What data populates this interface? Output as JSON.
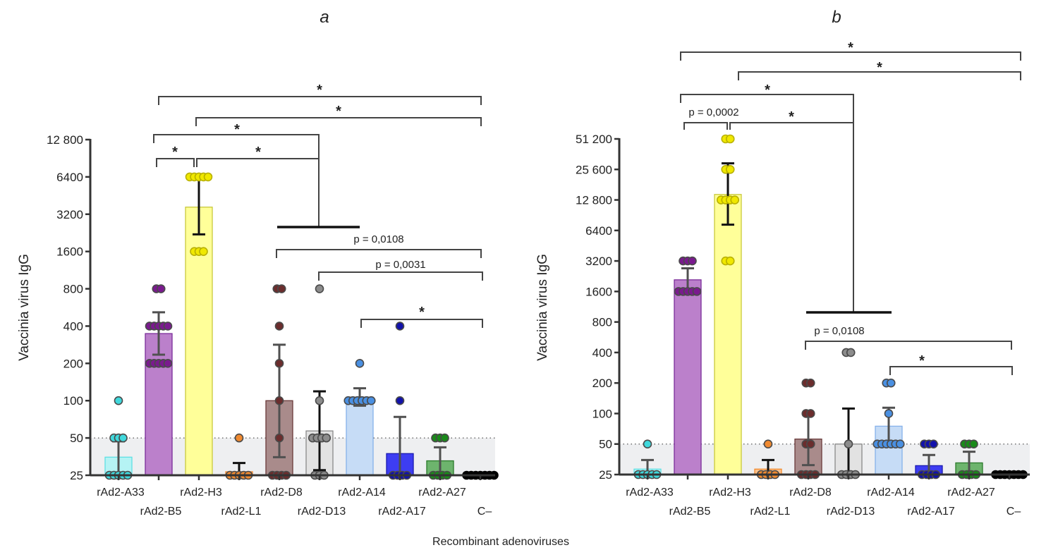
{
  "chart_data": [
    {
      "type": "bar",
      "panel_label": "a",
      "ylabel": "Vaccinia virus IgG",
      "yscale": "log2",
      "ylim": [
        25,
        12800
      ],
      "yticks": [
        25,
        50,
        100,
        200,
        400,
        800,
        1600,
        3200,
        6400,
        12800
      ],
      "ytick_labels": [
        "25",
        "50",
        "100",
        "200",
        "400",
        "800",
        "1600",
        "3200",
        "6400",
        "12 800"
      ],
      "threshold": 50,
      "categories": [
        "rAd2-A33",
        "rAd2-B5",
        "rAd2-H3",
        "rAd2-L1",
        "rAd2-D8",
        "rAd2-D13",
        "rAd2-A14",
        "rAd2-A17",
        "rAd2-A27",
        "C–"
      ],
      "values": [
        35,
        348,
        3650,
        26.7,
        100,
        57,
        107,
        37.4,
        32.7,
        25
      ],
      "error_low": [
        25,
        235,
        2200,
        25,
        35,
        27.5,
        91,
        25,
        25,
        25
      ],
      "error_high": [
        47,
        517,
        6220,
        31.4,
        283,
        119,
        126,
        74,
        42,
        25
      ],
      "points": [
        [
          25,
          25,
          25,
          25,
          25,
          50,
          50,
          50,
          100
        ],
        [
          200,
          200,
          200,
          200,
          200,
          400,
          400,
          400,
          400,
          400,
          800,
          800
        ],
        [
          1600,
          1600,
          1600,
          6400,
          6400,
          6400,
          6400,
          6400
        ],
        [
          25,
          25,
          25,
          25,
          25,
          50
        ],
        [
          25,
          25,
          25,
          25,
          50,
          100,
          200,
          400,
          800,
          800
        ],
        [
          25,
          25,
          25,
          50,
          50,
          50,
          50,
          100,
          800
        ],
        [
          100,
          100,
          100,
          100,
          100,
          100,
          200
        ],
        [
          25,
          25,
          25,
          25,
          100,
          400
        ],
        [
          25,
          25,
          25,
          25,
          50,
          50,
          50
        ],
        [
          25,
          25,
          25,
          25,
          25,
          25,
          25
        ]
      ],
      "annotations": [
        {
          "from": "rAd2-B5",
          "to": "C–",
          "text": "*"
        },
        {
          "from": "rAd2-H3",
          "to": "C–",
          "text": "*"
        },
        {
          "from": "rAd2-B5",
          "to": "rAd2-D8…rAd2-A14",
          "text": "*"
        },
        {
          "from": "rAd2-B5",
          "to": "rAd2-H3",
          "text": "*"
        },
        {
          "from": "rAd2-H3",
          "to": "rAd2-D8…rAd2-A14",
          "text": "*"
        },
        {
          "from": "rAd2-D8",
          "to": "C–",
          "text": "p = 0,0108"
        },
        {
          "from": "rAd2-D13",
          "to": "C–",
          "text": "p = 0,0031"
        },
        {
          "from": "rAd2-A14",
          "to": "C–",
          "text": "*"
        }
      ]
    },
    {
      "type": "bar",
      "panel_label": "b",
      "ylabel": "Vaccinia virus IgG",
      "yscale": "log2",
      "ylim": [
        25,
        51200
      ],
      "yticks": [
        25,
        50,
        100,
        200,
        400,
        800,
        1600,
        3200,
        6400,
        12800,
        25600,
        51200
      ],
      "ytick_labels": [
        "25",
        "50",
        "100",
        "200",
        "400",
        "800",
        "1600",
        "3200",
        "6400",
        "12 800",
        "25 600",
        "51 200"
      ],
      "threshold": 50,
      "categories": [
        "rAd2-A33",
        "rAd2-B5",
        "rAd2-H3",
        "rAd2-L1",
        "rAd2-D8",
        "rAd2-D13",
        "rAd2-A14",
        "rAd2-A17",
        "rAd2-A27",
        "C–"
      ],
      "values": [
        28.3,
        2085,
        14500,
        28.3,
        56,
        50,
        75,
        30.6,
        32.6,
        25
      ],
      "error_low": [
        25,
        1600,
        7300,
        25,
        31,
        25,
        50,
        25,
        25,
        25
      ],
      "error_high": [
        34.8,
        2710,
        29400,
        34.8,
        99,
        112,
        114,
        39,
        42,
        25
      ],
      "points": [
        [
          25,
          25,
          25,
          25,
          25,
          50
        ],
        [
          1600,
          1600,
          1600,
          1600,
          1600,
          3200,
          3200,
          3200
        ],
        [
          3200,
          3200,
          12800,
          12800,
          12800,
          12800,
          25600,
          25600,
          51200,
          51200
        ],
        [
          25,
          25,
          25,
          25,
          50
        ],
        [
          25,
          25,
          25,
          25,
          50,
          50,
          100,
          100,
          200,
          200
        ],
        [
          25,
          25,
          25,
          25,
          50,
          400,
          400
        ],
        [
          50,
          50,
          50,
          50,
          50,
          50,
          100,
          200,
          200
        ],
        [
          25,
          25,
          25,
          25,
          50,
          50,
          50
        ],
        [
          25,
          25,
          25,
          25,
          50,
          50,
          50
        ],
        [
          25,
          25,
          25,
          25,
          25,
          25,
          25
        ]
      ],
      "annotations": [
        {
          "from": "rAd2-B5",
          "to": "C–",
          "text": "*"
        },
        {
          "from": "rAd2-H3",
          "to": "C–",
          "text": "*"
        },
        {
          "from": "rAd2-B5",
          "to": "rAd2-D8…rAd2-A14",
          "text": "*"
        },
        {
          "from": "rAd2-B5",
          "to": "rAd2-H3",
          "text": "p = 0,0002"
        },
        {
          "from": "rAd2-H3",
          "to": "rAd2-D8…rAd2-A14",
          "text": "*"
        },
        {
          "from": "rAd2-D8",
          "to": "C–",
          "text": "p = 0,0108"
        },
        {
          "from": "rAd2-A14",
          "to": "C–",
          "text": "*"
        }
      ]
    }
  ],
  "xlabel": "Recombinant adenoviruses",
  "colors": {
    "fills": [
      "#b5f3f4",
      "#bb80cb",
      "#ffff99",
      "#ffc28a",
      "#a98b8b",
      "#e2e2e2",
      "#c6dcf6",
      "#3d3df2",
      "#6db46d",
      "#000000"
    ],
    "strokes": [
      "#5fe0e4",
      "#7b2d9a",
      "#c8c83c",
      "#f08a30",
      "#6a3a3a",
      "#8a8a8a",
      "#86b2ea",
      "#1a1ab0",
      "#2a7a2a",
      "#000000"
    ],
    "dots": [
      "#40d8dc",
      "#7a1a8e",
      "#f0e800",
      "#f08a30",
      "#6b2d2d",
      "#8c8c8c",
      "#4a90e2",
      "#1212aa",
      "#1a8a1a",
      "#000000"
    ],
    "band": "#eeeff1"
  }
}
